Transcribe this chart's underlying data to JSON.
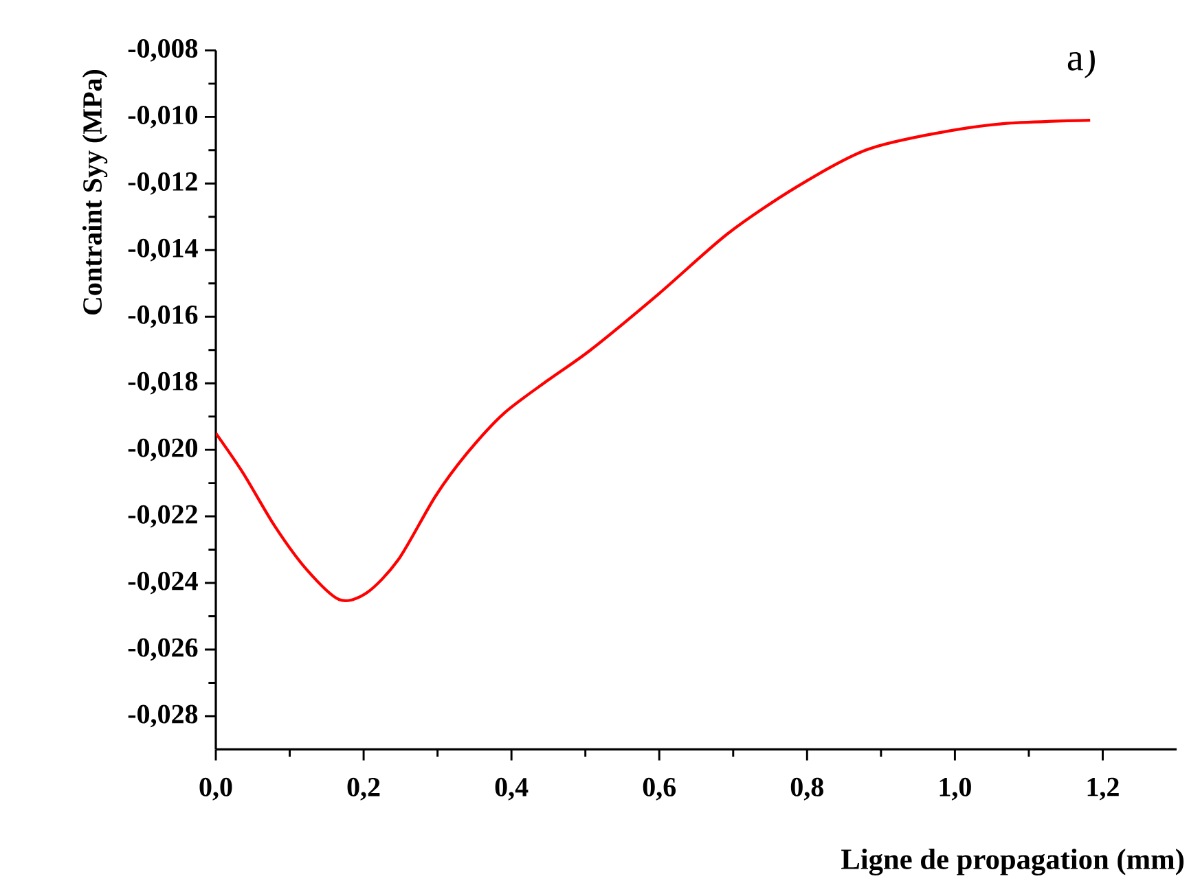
{
  "chart_data": {
    "type": "line",
    "xlabel": "Ligne de propagation (mm)",
    "ylabel": "Contraint Syy (MPa)",
    "annotations": [
      "a)"
    ],
    "xlim": [
      0,
      1.3
    ],
    "ylim": [
      -0.029,
      -0.008
    ],
    "xticks": [
      {
        "value": 0,
        "label": "0,0"
      },
      {
        "value": 0.2,
        "label": "0,2"
      },
      {
        "value": 0.4,
        "label": "0,4"
      },
      {
        "value": 0.6,
        "label": "0,6"
      },
      {
        "value": 0.8,
        "label": "0,8"
      },
      {
        "value": 1.0,
        "label": "1,0"
      },
      {
        "value": 1.2,
        "label": "1,2"
      }
    ],
    "yticks": [
      {
        "value": -0.008,
        "label": "-0,008"
      },
      {
        "value": -0.01,
        "label": "-0,010"
      },
      {
        "value": -0.012,
        "label": "-0,012"
      },
      {
        "value": -0.014,
        "label": "-0,014"
      },
      {
        "value": -0.016,
        "label": "-0,016"
      },
      {
        "value": -0.018,
        "label": "-0,018"
      },
      {
        "value": -0.02,
        "label": "-0,020"
      },
      {
        "value": -0.022,
        "label": "-0,022"
      },
      {
        "value": -0.024,
        "label": "-0,024"
      },
      {
        "value": -0.026,
        "label": "-0,026"
      },
      {
        "value": -0.028,
        "label": "-0,028"
      }
    ],
    "grid": false,
    "marker": "none",
    "line_style": "solid",
    "series": [
      {
        "color": "#ff0000",
        "x": [
          0,
          0.037,
          0.08,
          0.123,
          0.167,
          0.204,
          0.247,
          0.297,
          0.34,
          0.39,
          0.45,
          0.507,
          0.6,
          0.693,
          0.786,
          0.879,
          0.972,
          1.065,
          1.183
        ],
        "values": [
          -0.0195,
          -0.0207,
          -0.0223,
          -0.0236,
          -0.0245,
          -0.0243,
          -0.0233,
          -0.0214,
          -0.0201,
          -0.0189,
          -0.0179,
          -0.017,
          -0.0153,
          -0.0135,
          -0.0121,
          -0.011,
          -0.0105,
          -0.0102,
          -0.0101
        ]
      }
    ]
  }
}
